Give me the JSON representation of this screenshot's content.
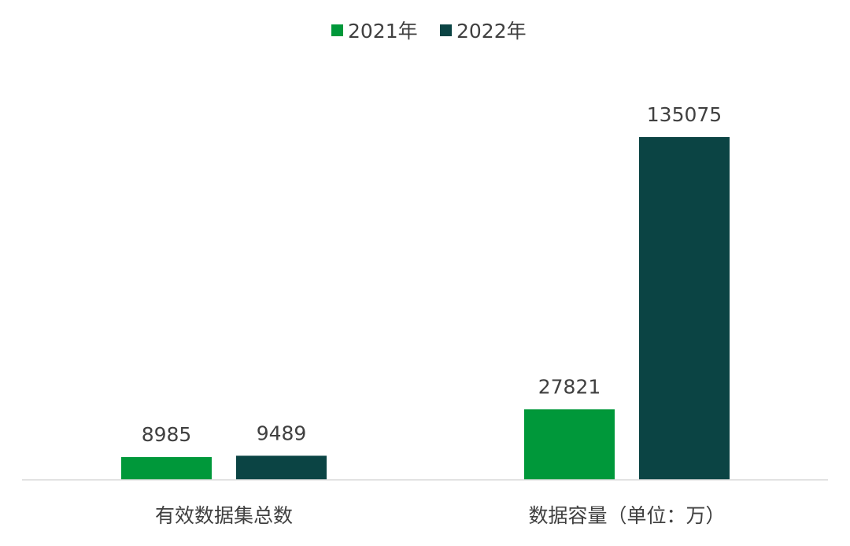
{
  "chart_data": {
    "type": "bar",
    "title": "",
    "xlabel": "",
    "ylabel": "",
    "categories": [
      "有效数据集总数",
      "数据容量（单位：万）"
    ],
    "series": [
      {
        "name": "2021年",
        "color": "#00983A",
        "values": [
          8985,
          27821
        ]
      },
      {
        "name": "2022年",
        "color": "#0B4444",
        "values": [
          9489,
          135075
        ]
      }
    ],
    "ylim": [
      0,
      135075
    ],
    "grid": false,
    "legend_position": "top-center",
    "axis_color": "#D9D9D9"
  }
}
